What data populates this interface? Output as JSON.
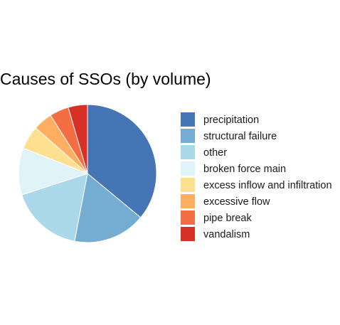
{
  "chart_data": {
    "type": "pie",
    "title": "Causes of SSOs (by volume)",
    "legend_position": "right",
    "start": "12 o'clock",
    "direction": "clockwise",
    "categories": [
      "precipitation",
      "structural failure",
      "other",
      "broken force main",
      "excess inflow and infiltration",
      "excessive flow",
      "pipe break",
      "vandalism"
    ],
    "values": [
      36,
      17,
      17,
      11,
      5.5,
      4.5,
      4.5,
      4.5
    ],
    "colors": [
      "#4575b4",
      "#74add1",
      "#abd9e9",
      "#e0f3f8",
      "#fee090",
      "#fdae61",
      "#f46d43",
      "#d73027"
    ]
  }
}
